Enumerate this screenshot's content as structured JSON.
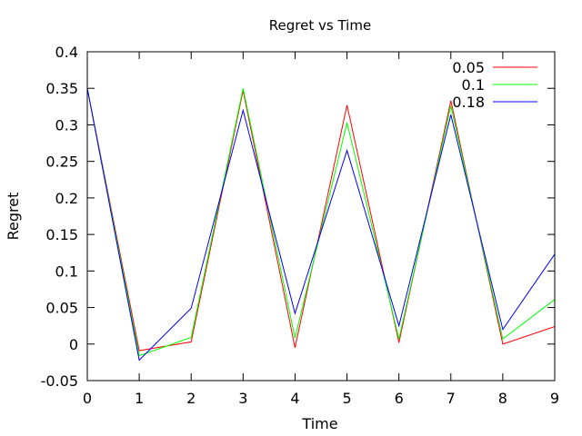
{
  "chart_data": {
    "type": "line",
    "title": "Regret vs Time",
    "xlabel": "Time",
    "ylabel": "Regret",
    "xlim": [
      0,
      9
    ],
    "ylim": [
      -0.05,
      0.4
    ],
    "x_ticks": [
      0,
      1,
      2,
      3,
      4,
      5,
      6,
      7,
      8,
      9
    ],
    "y_ticks": [
      -0.05,
      0,
      0.05,
      0.1,
      0.15,
      0.2,
      0.25,
      0.3,
      0.35,
      0.4
    ],
    "y_tick_labels": [
      "-0.05",
      "0",
      "0.05",
      "0.1",
      "0.15",
      "0.2",
      "0.25",
      "0.3",
      "0.35",
      "0.4"
    ],
    "grid": false,
    "legend_position": "top-right",
    "x": [
      0,
      1,
      2,
      3,
      4,
      5,
      6,
      7,
      8,
      9
    ],
    "series": [
      {
        "name": "0.05",
        "color": "#ff0000",
        "values": [
          0.35,
          -0.009,
          0.003,
          0.347,
          -0.005,
          0.327,
          0.002,
          0.333,
          0.0,
          0.024
        ]
      },
      {
        "name": "0.1",
        "color": "#00ff00",
        "values": [
          0.35,
          -0.016,
          0.009,
          0.35,
          0.008,
          0.303,
          0.007,
          0.326,
          0.007,
          0.061
        ]
      },
      {
        "name": "0.18",
        "color": "#0000ff",
        "values": [
          0.35,
          -0.022,
          0.049,
          0.32,
          0.042,
          0.265,
          0.025,
          0.314,
          0.02,
          0.123
        ]
      }
    ]
  }
}
